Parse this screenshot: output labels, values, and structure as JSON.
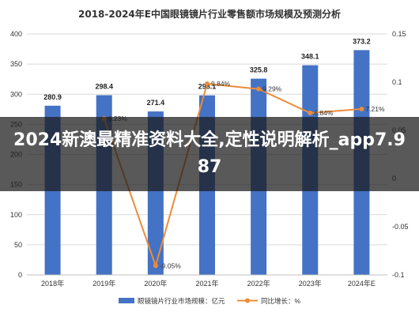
{
  "banner": {
    "text": "2024新澳最精准资料大全,定性说明解析_app7.987"
  },
  "chart_data": {
    "type": "bar+line",
    "title": "2018-2024年E中国眼镜镜片行业零售额市场规模及预测分析",
    "categories": [
      "2018年",
      "2019年",
      "2020年",
      "2021年",
      "2022年",
      "2023年",
      "2024年E"
    ],
    "series": [
      {
        "name": "眼镜镜片行业市场规模：亿元",
        "type": "bar",
        "axis": "left",
        "values": [
          280.9,
          298.4,
          271.4,
          298.1,
          325.8,
          348.1,
          373.2
        ],
        "labels": [
          "280.9",
          "298.4",
          "271.4",
          "298.1",
          "325.8",
          "348.1",
          "373.2"
        ],
        "color": "#4472C4"
      },
      {
        "name": "同比增长：%",
        "type": "line",
        "axis": "right",
        "values": [
          null,
          0.0623,
          -0.0905,
          0.0984,
          0.0929,
          0.068,
          0.0721
        ],
        "labels": [
          "",
          "6.23%",
          "-9.05%",
          "9.84%",
          "9.29%",
          "6.84%",
          "7.21%"
        ],
        "color": "#ED8C3A"
      }
    ],
    "y_left": {
      "min": 0,
      "max": 400,
      "ticks": [
        "0",
        "50",
        "100",
        "150",
        "200",
        "250",
        "300",
        "350",
        "400"
      ]
    },
    "y_right": {
      "min": -0.1,
      "max": 0.15,
      "ticks": [
        "-0.1",
        "-0.05",
        "0",
        "0.05",
        "0.1",
        "0.15"
      ]
    },
    "grid": true,
    "legend": "bottom"
  }
}
